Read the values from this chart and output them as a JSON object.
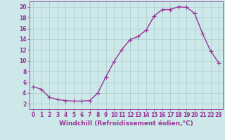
{
  "x": [
    0,
    1,
    2,
    3,
    4,
    5,
    6,
    7,
    8,
    9,
    10,
    11,
    12,
    13,
    14,
    15,
    16,
    17,
    18,
    19,
    20,
    21,
    22,
    23
  ],
  "y": [
    5.2,
    4.7,
    3.2,
    2.8,
    2.6,
    2.5,
    2.5,
    2.6,
    4.0,
    7.0,
    9.8,
    12.1,
    13.9,
    14.5,
    15.7,
    18.3,
    19.5,
    19.5,
    20.0,
    19.9,
    18.8,
    15.0,
    11.8,
    9.6
  ],
  "line_color": "#993399",
  "marker": "+",
  "marker_size": 4,
  "bg_color": "#cce8e8",
  "grid_color": "#aacccc",
  "xlabel": "Windchill (Refroidissement éolien,°C)",
  "xlim": [
    -0.5,
    23.5
  ],
  "ylim": [
    1,
    21
  ],
  "yticks": [
    2,
    4,
    6,
    8,
    10,
    12,
    14,
    16,
    18,
    20
  ],
  "xticks": [
    0,
    1,
    2,
    3,
    4,
    5,
    6,
    7,
    8,
    9,
    10,
    11,
    12,
    13,
    14,
    15,
    16,
    17,
    18,
    19,
    20,
    21,
    22,
    23
  ],
  "tick_color": "#993399",
  "tick_fontsize": 5.5,
  "xlabel_fontsize": 6.5,
  "line_width": 1.0,
  "marker_edge_width": 0.8
}
